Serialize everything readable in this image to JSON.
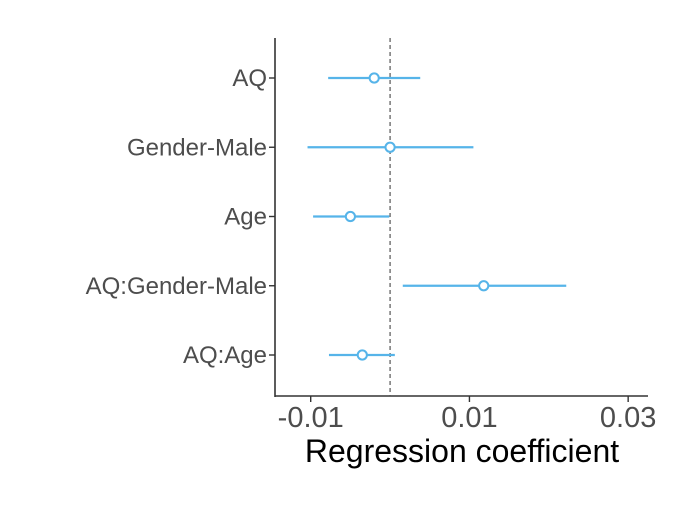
{
  "chart_data": {
    "type": "forest",
    "xlabel": "Regression coefficient",
    "ylabel": "",
    "xlim": [
      -0.0145,
      0.0325
    ],
    "x_ticks": [
      -0.01,
      0.01,
      0.03
    ],
    "x_tick_labels": [
      "-0.01",
      "0.01",
      "0.03"
    ],
    "reference_line": 0,
    "grid": false,
    "legend": "none",
    "color": "#56b4e9",
    "categories": [
      "AQ",
      "Gender-Male",
      "Age",
      "AQ:Gender-Male",
      "AQ:Age"
    ],
    "estimates": [
      -0.002,
      0.0,
      -0.005,
      0.0118,
      -0.0035
    ],
    "lower": [
      -0.0078,
      -0.0104,
      -0.0097,
      0.0016,
      -0.0077
    ],
    "upper": [
      0.0038,
      0.0105,
      -0.0001,
      0.0222,
      0.0006
    ]
  }
}
